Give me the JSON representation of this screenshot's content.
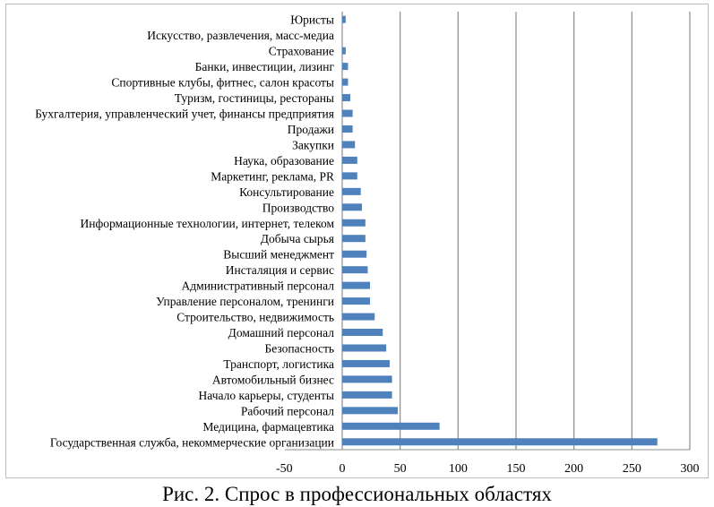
{
  "caption": "Рис. 2. Спрос в профессиональных областях",
  "chart_data": {
    "type": "bar",
    "orientation": "horizontal",
    "title": "",
    "xlabel": "",
    "ylabel": "",
    "xlim": [
      -50,
      300
    ],
    "xticks": [
      -50,
      0,
      50,
      100,
      150,
      200,
      250,
      300
    ],
    "grid": "vertical major gridlines",
    "legend": "none",
    "bar_color": "#4f81bd",
    "categories": [
      "Юристы",
      "Искусство, развлечения, масс-медиа",
      "Страхование",
      "Банки, инвестиции, лизинг",
      "Спортивные клубы, фитнес, салон красоты",
      "Туризм, гостиницы, рестораны",
      "Бухгалтерия, управленческий учет, финансы предприятия",
      "Продажи",
      "Закупки",
      "Наука, образование",
      "Маркетинг, реклама, PR",
      "Консультирование",
      "Производство",
      "Информационные технологии, интернет, телеком",
      "Добыча сырья",
      "Высший менеджмент",
      "Инсталяция и сервис",
      "Административный персонал",
      "Управление персоналом, тренинги",
      "Строительство, недвижимость",
      "Домашний персонал",
      "Безопасность",
      "Транспорт, логистика",
      "Автомобильный бизнес",
      "Начало карьеры, студенты",
      "Рабочий персонал",
      "Медицина, фармацевтика",
      "Государственная служба, некоммерческие организации"
    ],
    "values": [
      3,
      0,
      3,
      5,
      5,
      7,
      9,
      9,
      11,
      13,
      13,
      16,
      17,
      20,
      20,
      21,
      22,
      24,
      24,
      28,
      35,
      38,
      41,
      43,
      43,
      48,
      84,
      272
    ]
  }
}
